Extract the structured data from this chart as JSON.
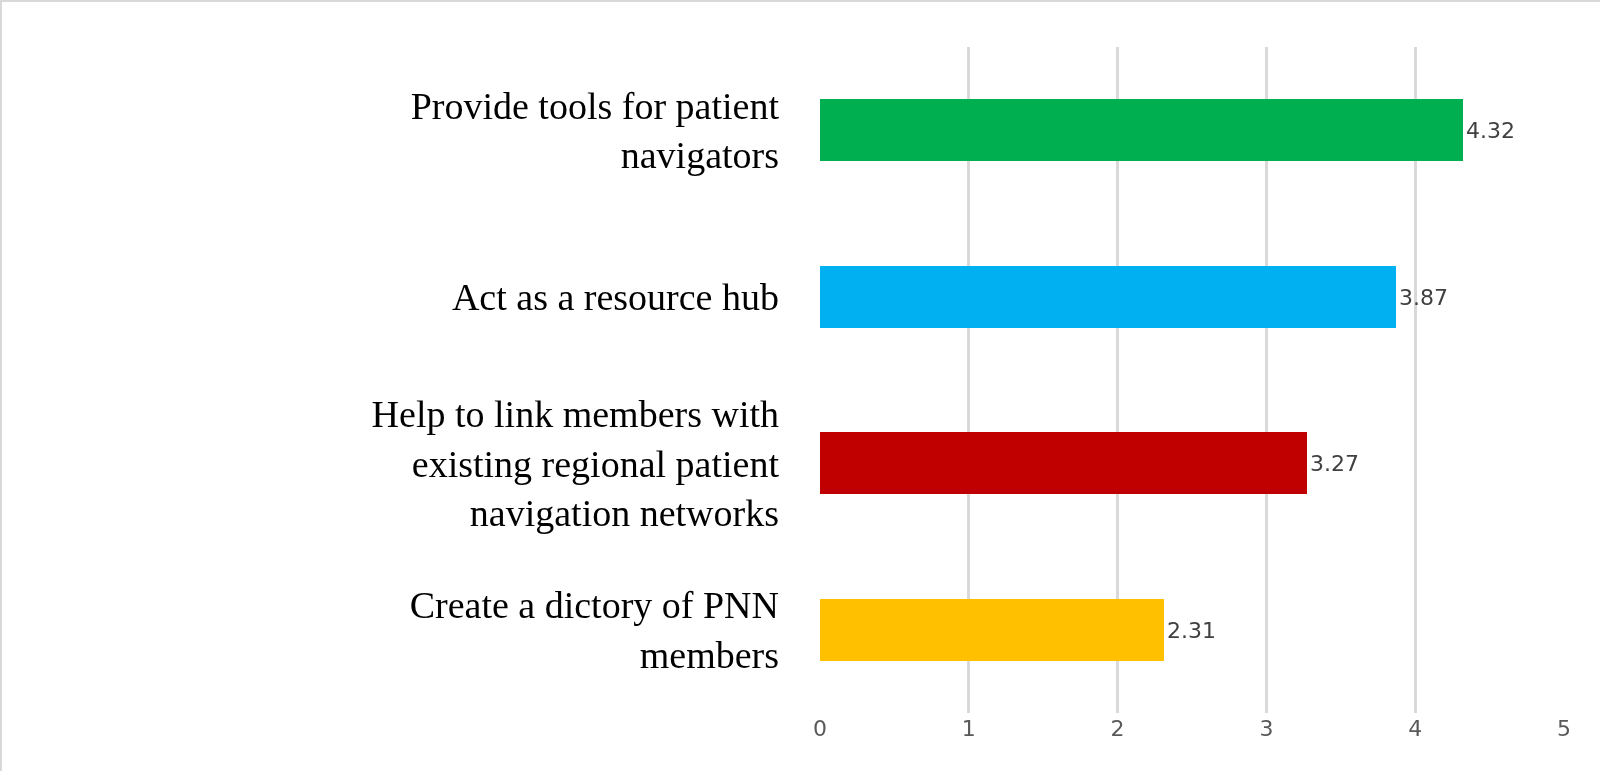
{
  "chart_data": {
    "type": "bar",
    "orientation": "horizontal",
    "categories": [
      "Provide tools for patient navigators",
      "Act as a resource hub",
      "Help to link members with existing regional patient navigation networks",
      "Create a dictory of PNN members"
    ],
    "values": [
      4.32,
      3.87,
      3.27,
      2.31
    ],
    "colors": [
      "#00b050",
      "#00b0f0",
      "#c00000",
      "#ffc000"
    ],
    "xlim": [
      0,
      5
    ],
    "xticks": [
      0,
      1,
      2,
      3,
      4,
      5
    ],
    "grid": "x",
    "data_labels": true
  }
}
